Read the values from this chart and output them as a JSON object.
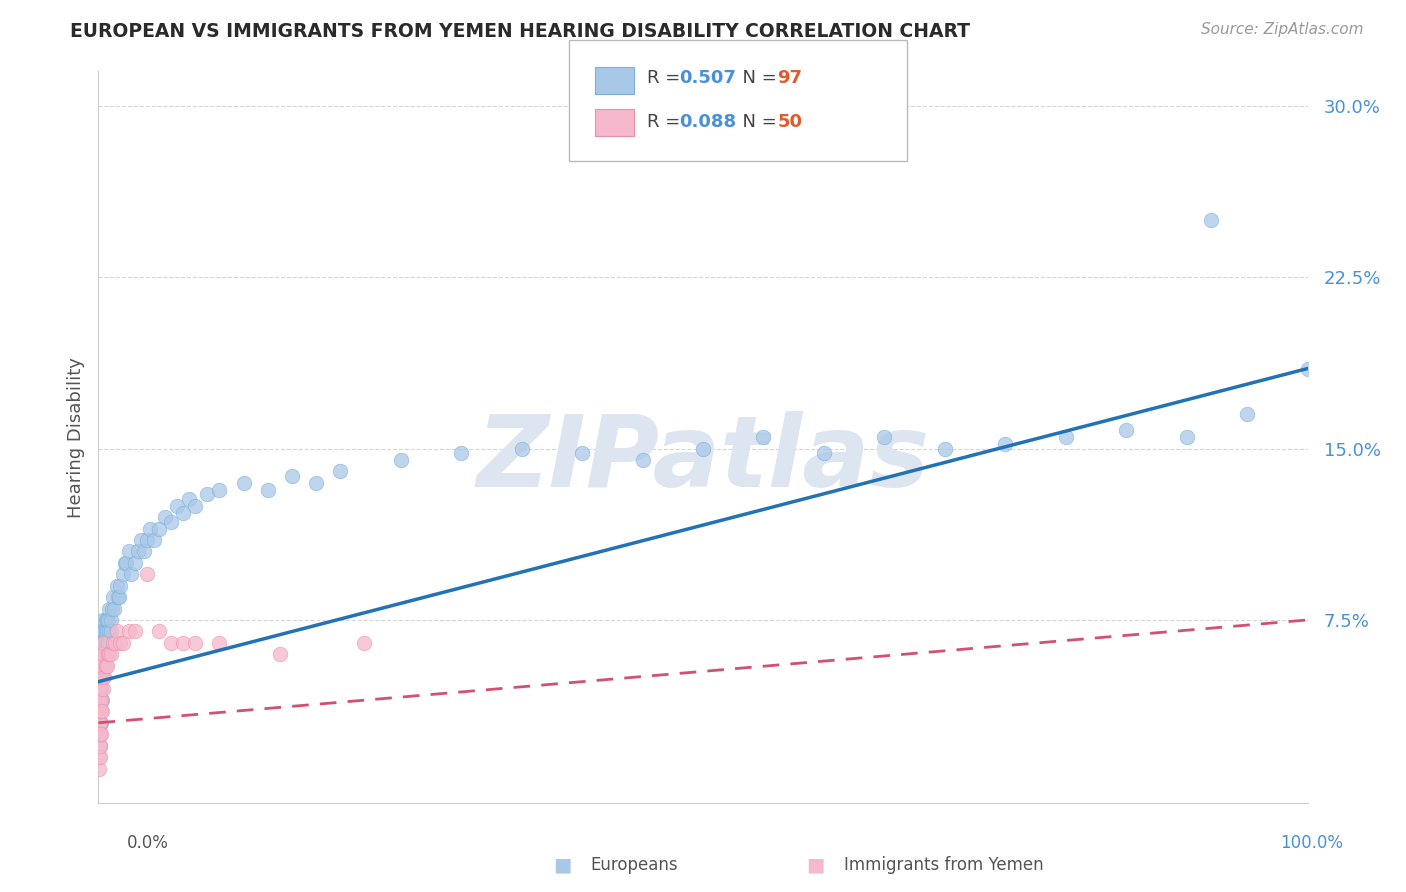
{
  "title": "EUROPEAN VS IMMIGRANTS FROM YEMEN HEARING DISABILITY CORRELATION CHART",
  "source": "Source: ZipAtlas.com",
  "ylabel": "Hearing Disability",
  "xlim": [
    0,
    1.0
  ],
  "ylim": [
    -0.005,
    0.315
  ],
  "yticks": [
    0.075,
    0.15,
    0.225,
    0.3
  ],
  "ytick_labels": [
    "7.5%",
    "15.0%",
    "22.5%",
    "30.0%"
  ],
  "blue_color": "#a8c8e8",
  "blue_edge_color": "#7ab0d8",
  "pink_color": "#f5b8cc",
  "pink_edge_color": "#e890a8",
  "blue_line_color": "#2272b5",
  "pink_line_color": "#d45070",
  "tick_label_color": "#4a90d9",
  "background_color": "#ffffff",
  "watermark": "ZIPatlas",
  "watermark_color": "#dde5f0",
  "grid_color": "#cccccc",
  "blue_R": 0.507,
  "blue_N": 97,
  "pink_R": 0.088,
  "pink_N": 50,
  "blue_line_start_y": 0.048,
  "blue_line_end_y": 0.185,
  "pink_line_start_y": 0.03,
  "pink_line_end_y": 0.075,
  "blue_scatter_x": [
    0.001,
    0.001,
    0.001,
    0.001,
    0.001,
    0.001,
    0.001,
    0.001,
    0.001,
    0.001,
    0.002,
    0.002,
    0.002,
    0.002,
    0.002,
    0.002,
    0.002,
    0.002,
    0.003,
    0.003,
    0.003,
    0.003,
    0.003,
    0.003,
    0.004,
    0.004,
    0.004,
    0.004,
    0.004,
    0.004,
    0.005,
    0.005,
    0.005,
    0.005,
    0.006,
    0.006,
    0.006,
    0.006,
    0.007,
    0.007,
    0.007,
    0.008,
    0.008,
    0.009,
    0.009,
    0.01,
    0.01,
    0.011,
    0.012,
    0.013,
    0.015,
    0.016,
    0.017,
    0.018,
    0.02,
    0.022,
    0.023,
    0.025,
    0.027,
    0.03,
    0.033,
    0.035,
    0.038,
    0.04,
    0.043,
    0.046,
    0.05,
    0.055,
    0.06,
    0.065,
    0.07,
    0.075,
    0.08,
    0.09,
    0.1,
    0.12,
    0.14,
    0.16,
    0.18,
    0.2,
    0.25,
    0.3,
    0.35,
    0.4,
    0.45,
    0.5,
    0.55,
    0.6,
    0.65,
    0.7,
    0.75,
    0.8,
    0.85,
    0.9,
    0.92,
    0.95,
    1.0
  ],
  "blue_scatter_y": [
    0.02,
    0.025,
    0.03,
    0.035,
    0.04,
    0.045,
    0.05,
    0.055,
    0.06,
    0.065,
    0.03,
    0.04,
    0.045,
    0.05,
    0.055,
    0.06,
    0.065,
    0.07,
    0.04,
    0.05,
    0.055,
    0.06,
    0.065,
    0.07,
    0.05,
    0.055,
    0.06,
    0.065,
    0.07,
    0.075,
    0.055,
    0.06,
    0.065,
    0.07,
    0.06,
    0.065,
    0.07,
    0.075,
    0.065,
    0.07,
    0.075,
    0.065,
    0.075,
    0.07,
    0.08,
    0.07,
    0.075,
    0.08,
    0.085,
    0.08,
    0.09,
    0.085,
    0.085,
    0.09,
    0.095,
    0.1,
    0.1,
    0.105,
    0.095,
    0.1,
    0.105,
    0.11,
    0.105,
    0.11,
    0.115,
    0.11,
    0.115,
    0.12,
    0.118,
    0.125,
    0.122,
    0.128,
    0.125,
    0.13,
    0.132,
    0.135,
    0.132,
    0.138,
    0.135,
    0.14,
    0.145,
    0.148,
    0.15,
    0.148,
    0.145,
    0.15,
    0.155,
    0.148,
    0.155,
    0.15,
    0.152,
    0.155,
    0.158,
    0.155,
    0.25,
    0.165,
    0.185
  ],
  "pink_scatter_x": [
    0.0005,
    0.0005,
    0.0005,
    0.0005,
    0.0005,
    0.0005,
    0.0005,
    0.0005,
    0.0005,
    0.0005,
    0.001,
    0.001,
    0.001,
    0.001,
    0.001,
    0.001,
    0.001,
    0.001,
    0.001,
    0.001,
    0.002,
    0.002,
    0.002,
    0.002,
    0.002,
    0.003,
    0.003,
    0.004,
    0.004,
    0.005,
    0.006,
    0.007,
    0.008,
    0.009,
    0.01,
    0.012,
    0.014,
    0.015,
    0.018,
    0.02,
    0.025,
    0.03,
    0.04,
    0.05,
    0.06,
    0.07,
    0.08,
    0.1,
    0.15,
    0.22
  ],
  "pink_scatter_y": [
    0.01,
    0.015,
    0.02,
    0.025,
    0.03,
    0.035,
    0.04,
    0.045,
    0.05,
    0.055,
    0.015,
    0.02,
    0.025,
    0.03,
    0.035,
    0.04,
    0.045,
    0.05,
    0.055,
    0.06,
    0.025,
    0.035,
    0.04,
    0.05,
    0.06,
    0.035,
    0.055,
    0.045,
    0.065,
    0.05,
    0.055,
    0.055,
    0.06,
    0.06,
    0.06,
    0.065,
    0.065,
    0.07,
    0.065,
    0.065,
    0.07,
    0.07,
    0.095,
    0.07,
    0.065,
    0.065,
    0.065,
    0.065,
    0.06,
    0.065
  ]
}
